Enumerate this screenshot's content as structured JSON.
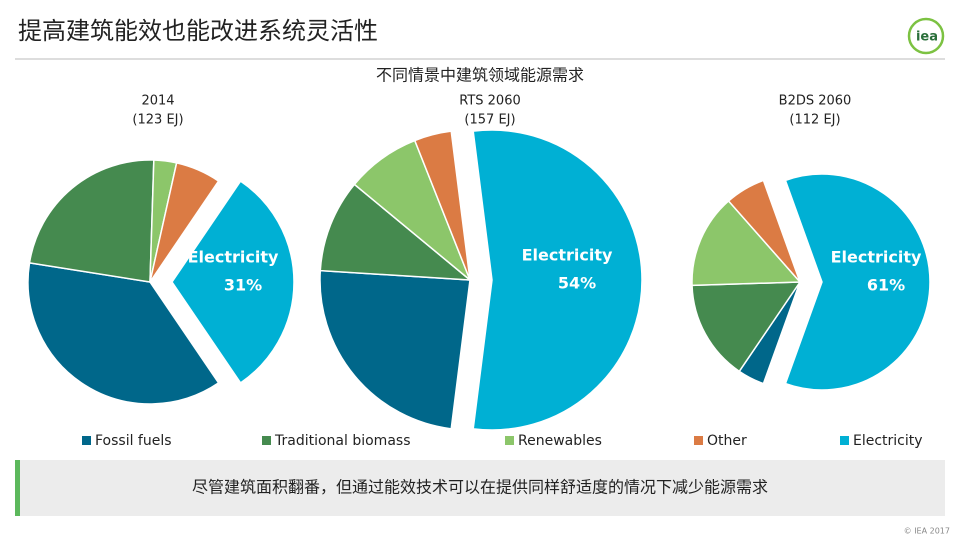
{
  "title": "提高建筑能效也能改进系统灵活性",
  "logo": "iea",
  "subtitle": "不同情景中建筑领域能源需求",
  "footer": "尽管建筑面积翻番，但通过能效技术可以在提供同样舒适度的情况下减少能源需求",
  "copyright": "© IEA 2017",
  "chart_data": [
    {
      "type": "pie",
      "title": "2014",
      "subtitle": "(123 EJ)",
      "categories": [
        "Fossil fuels",
        "Traditional biomass",
        "Renewables",
        "Other",
        "Electricity"
      ],
      "values": [
        37,
        23,
        3,
        6,
        31
      ],
      "value_labels": [
        null,
        null,
        null,
        null,
        "31%"
      ],
      "colors": [
        "#00678a",
        "#458a4f",
        "#8cc66a",
        "#db7b44",
        "#00b0d4"
      ]
    },
    {
      "type": "pie",
      "title": "RTS 2060",
      "subtitle": "(157 EJ)",
      "categories": [
        "Fossil fuels",
        "Traditional biomass",
        "Renewables",
        "Other",
        "Electricity"
      ],
      "values": [
        24,
        10,
        8,
        4,
        54
      ],
      "value_labels": [
        null,
        null,
        null,
        null,
        "54%"
      ],
      "colors": [
        "#00678a",
        "#458a4f",
        "#8cc66a",
        "#db7b44",
        "#00b0d4"
      ]
    },
    {
      "type": "pie",
      "title": "B2DS 2060",
      "subtitle": "(112 EJ)",
      "categories": [
        "Fossil fuels",
        "Traditional biomass",
        "Renewables",
        "Other",
        "Electricity"
      ],
      "values": [
        4,
        15,
        14,
        6,
        61
      ],
      "value_labels": [
        null,
        null,
        null,
        null,
        "61%"
      ],
      "colors": [
        "#00678a",
        "#458a4f",
        "#8cc66a",
        "#db7b44",
        "#00b0d4"
      ]
    }
  ]
}
